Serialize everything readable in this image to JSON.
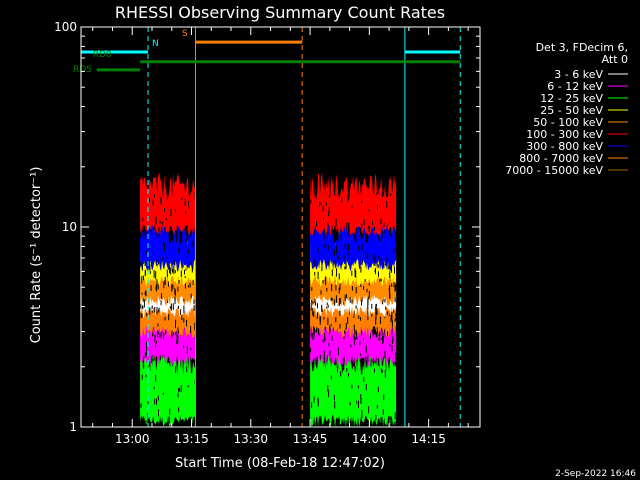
{
  "chart_data": {
    "type": "line",
    "title": "RHESSI Observing Summary Count Rates",
    "xlabel": "Start Time (08-Feb-18 12:47:02)",
    "ylabel": "Count Rate (s⁻¹ detector⁻¹)",
    "y_scale": "log",
    "ylim": [
      1,
      100
    ],
    "xlim": [
      "12:47:02",
      "14:28:00"
    ],
    "x_ticks": [
      "13:00",
      "13:15",
      "13:30",
      "13:45",
      "14:00",
      "14:15"
    ],
    "y_ticks": [
      "1",
      "10",
      "100"
    ],
    "legend_title": [
      "Det 3, FDecim 6,",
      "Att 0"
    ],
    "legend": [
      {
        "label": "3 - 6 keV",
        "color": "#ffffff"
      },
      {
        "label": "6 - 12 keV",
        "color": "#ff00ff"
      },
      {
        "label": "12 - 25 keV",
        "color": "#00ff00"
      },
      {
        "label": "25 - 50 keV",
        "color": "#ffff00"
      },
      {
        "label": "50 - 100 keV",
        "color": "#ff8c00"
      },
      {
        "label": "100 - 300 keV",
        "color": "#ff0000"
      },
      {
        "label": "300 - 800 keV",
        "color": "#0000ff"
      },
      {
        "label": "800 - 7000 keV",
        "color": "#ff8000"
      },
      {
        "label": "7000 - 15000 keV",
        "color": "#996600"
      }
    ],
    "data_segments": [
      {
        "start": "13:02",
        "end": "13:16"
      },
      {
        "start": "13:45",
        "end": "14:07"
      }
    ],
    "bands": [
      {
        "band": "12 - 25 keV",
        "color": "#00ff00",
        "range": [
          1,
          2
        ]
      },
      {
        "band": "6 - 12 keV",
        "color": "#ff00ff",
        "range": [
          2,
          3
        ]
      },
      {
        "band": "800 - 7000 keV",
        "color": "#ff8000",
        "range": [
          2.8,
          4.2
        ]
      },
      {
        "band": "3 - 6 keV",
        "color": "#ffffff",
        "range": [
          3.5,
          4.8
        ]
      },
      {
        "band": "50 - 100 keV",
        "color": "#ff8c00",
        "range": [
          4,
          6
        ]
      },
      {
        "band": "25 - 50 keV",
        "color": "#ffff00",
        "range": [
          5,
          7
        ]
      },
      {
        "band": "300 - 800 keV",
        "color": "#0000ff",
        "range": [
          6,
          9
        ]
      },
      {
        "band": "100 - 300 keV",
        "color": "#ff0000",
        "range": [
          9,
          15
        ]
      }
    ],
    "flags": [
      {
        "label": "N",
        "color": "#00ffff",
        "spans": [
          [
            "12:47:02",
            "13:04"
          ],
          [
            "14:09",
            "14:23"
          ]
        ],
        "y": 75
      },
      {
        "label": "S",
        "color": "#ff8000",
        "spans": [
          [
            "13:16",
            "13:43"
          ]
        ],
        "y": 84
      },
      {
        "label": "RD0",
        "color": "#008000",
        "spans": [
          [
            "13:02",
            "14:23"
          ]
        ],
        "y": 67
      },
      {
        "label": "RD5",
        "color": "#008000",
        "spans": [
          [
            "12:51",
            "13:02"
          ]
        ],
        "y": 61
      }
    ],
    "vertical_lines": [
      {
        "time": "12:47:02",
        "color": "#00ffff",
        "style": "solid"
      },
      {
        "time": "13:04",
        "color": "#00ffff",
        "style": "dashed"
      },
      {
        "time": "13:16",
        "color": "#ff8000",
        "style": "solid"
      },
      {
        "time": "13:43",
        "color": "#ff8000",
        "style": "dashed"
      },
      {
        "time": "14:09",
        "color": "#00ffff",
        "style": "solid"
      },
      {
        "time": "14:23",
        "color": "#00ffff",
        "style": "dashed"
      }
    ]
  },
  "footer": {
    "date_stamp": "2-Sep-2022 16:46"
  },
  "colors": {
    "background": "#000000",
    "axes": "#ffffff"
  }
}
